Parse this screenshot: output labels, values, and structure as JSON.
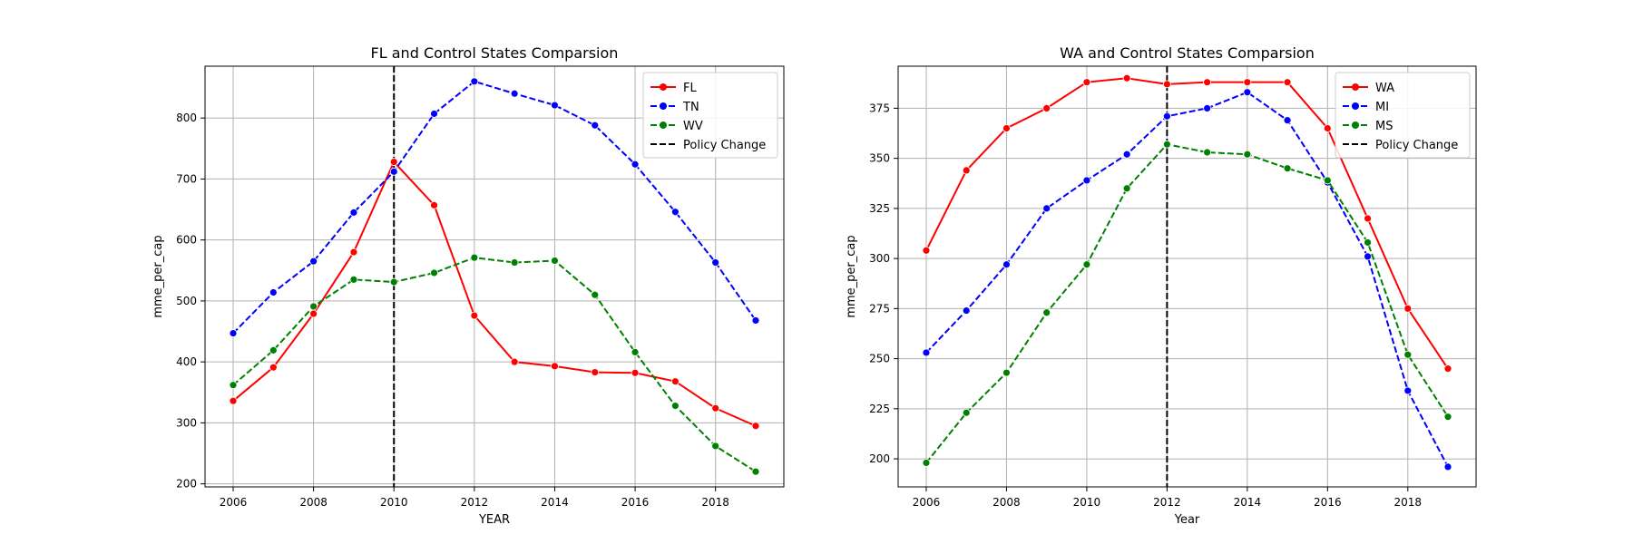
{
  "chart_data": [
    {
      "type": "line",
      "title": "FL and Control States Comparsion",
      "xlabel": "YEAR",
      "ylabel": "mme_per_cap",
      "xlim": [
        2005.3,
        2019.7
      ],
      "ylim": [
        195,
        885
      ],
      "xticks": [
        2006,
        2008,
        2010,
        2012,
        2014,
        2016,
        2018
      ],
      "yticks": [
        200,
        300,
        400,
        500,
        600,
        700,
        800
      ],
      "grid": true,
      "legend_position": "top-right",
      "policy_line": {
        "x": 2010,
        "label": "Policy Change",
        "color": "#000000"
      },
      "x": [
        2006,
        2007,
        2008,
        2009,
        2010,
        2011,
        2012,
        2013,
        2014,
        2015,
        2016,
        2017,
        2018,
        2019
      ],
      "series": [
        {
          "name": "FL",
          "color": "#ff0000",
          "style": "solid",
          "values": [
            336,
            391,
            479,
            580,
            728,
            657,
            476,
            400,
            393,
            383,
            382,
            368,
            324,
            295
          ]
        },
        {
          "name": "TN",
          "color": "#0000ff",
          "style": "dashed",
          "values": [
            447,
            514,
            565,
            645,
            712,
            807,
            860,
            840,
            821,
            788,
            724,
            646,
            563,
            468
          ]
        },
        {
          "name": "WV",
          "color": "#008000",
          "style": "dashed",
          "values": [
            362,
            419,
            491,
            535,
            531,
            546,
            571,
            563,
            566,
            510,
            416,
            328,
            262,
            220
          ]
        }
      ]
    },
    {
      "type": "line",
      "title": "WA and Control States Comparsion",
      "xlabel": "Year",
      "ylabel": "mme_per_cap",
      "xlim": [
        2005.3,
        2019.7
      ],
      "ylim": [
        186,
        396
      ],
      "xticks": [
        2006,
        2008,
        2010,
        2012,
        2014,
        2016,
        2018
      ],
      "yticks": [
        200,
        225,
        250,
        275,
        300,
        325,
        350,
        375
      ],
      "grid": true,
      "legend_position": "top-right",
      "policy_line": {
        "x": 2012,
        "label": "Policy Change",
        "color": "#000000"
      },
      "x": [
        2006,
        2007,
        2008,
        2009,
        2010,
        2011,
        2012,
        2013,
        2014,
        2015,
        2016,
        2017,
        2018,
        2019
      ],
      "series": [
        {
          "name": "WA",
          "color": "#ff0000",
          "style": "solid",
          "values": [
            304,
            344,
            365,
            375,
            388,
            390,
            387,
            388,
            388,
            388,
            365,
            320,
            275,
            245
          ]
        },
        {
          "name": "MI",
          "color": "#0000ff",
          "style": "dashed",
          "values": [
            253,
            274,
            297,
            325,
            339,
            352,
            371,
            375,
            383,
            369,
            338,
            301,
            234,
            196
          ]
        },
        {
          "name": "MS",
          "color": "#008000",
          "style": "dashed",
          "values": [
            198,
            223,
            243,
            273,
            297,
            335,
            357,
            353,
            352,
            345,
            339,
            308,
            252,
            221
          ]
        }
      ]
    }
  ]
}
